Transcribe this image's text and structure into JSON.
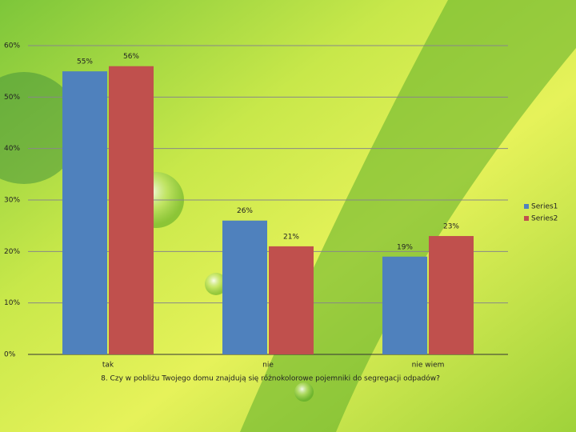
{
  "chart_data": {
    "type": "bar",
    "x_label": "8. Czy w pobliżu Twojego domu znajdują się różnokolorowe pojemniki do segregacji odpadów?",
    "categories": [
      "tak",
      "nie",
      "nie wiem"
    ],
    "series": [
      {
        "name": "Series1",
        "color": "#4f81bd",
        "values": [
          55,
          26,
          19
        ],
        "value_labels": [
          "55%",
          "26%",
          "19%"
        ]
      },
      {
        "name": "Series2",
        "color": "#c0504d",
        "values": [
          56,
          21,
          23
        ],
        "value_labels": [
          "56%",
          "21%",
          "23%"
        ]
      }
    ],
    "ylim": [
      0,
      60
    ],
    "yticks": [
      {
        "value": 0,
        "label": "0%"
      },
      {
        "value": 10,
        "label": "10%"
      },
      {
        "value": 20,
        "label": "20%"
      },
      {
        "value": 30,
        "label": "30%"
      },
      {
        "value": 40,
        "label": "40%"
      },
      {
        "value": 50,
        "label": "50%"
      },
      {
        "value": 60,
        "label": "60%"
      }
    ],
    "grid": true,
    "legend": "right"
  }
}
